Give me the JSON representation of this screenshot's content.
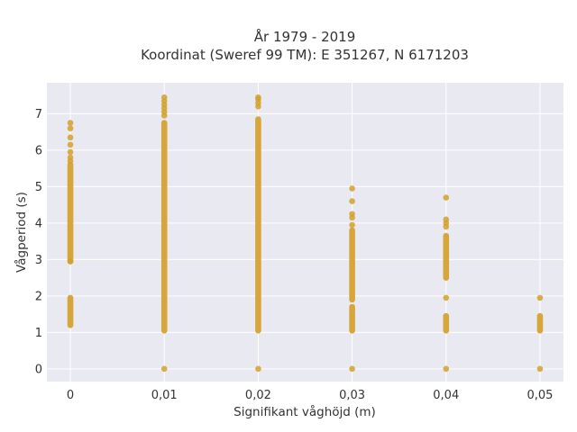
{
  "chart_data": {
    "type": "scatter",
    "title": "År 1979 - 2019",
    "subtitle": "Koordinat (Sweref 99 TM): E 351267, N 6171203",
    "xlabel": "Signifikant våghöjd (m)",
    "ylabel": "Vågperiod (s)",
    "xlim": [
      -0.0025,
      0.0525
    ],
    "ylim": [
      -0.35,
      7.85
    ],
    "x_ticks": [
      0,
      0.01,
      0.02,
      0.03,
      0.04,
      0.05
    ],
    "x_tick_labels": [
      "0",
      "0,01",
      "0,02",
      "0,03",
      "0,04",
      "0,05"
    ],
    "y_ticks": [
      0,
      1,
      2,
      3,
      4,
      5,
      6,
      7
    ],
    "y_tick_labels": [
      "0",
      "1",
      "2",
      "3",
      "4",
      "5",
      "6",
      "7"
    ],
    "grid": true,
    "marker_color": "#D4A02A",
    "background_color": "#E9E9F1",
    "series": [
      {
        "segments": [
          {
            "x": 0,
            "y": [
              1.2,
              1.95
            ]
          },
          {
            "x": 0,
            "y": [
              2.95,
              5.6
            ]
          },
          {
            "x": 0.01,
            "y": [
              1.05,
              6.75
            ]
          },
          {
            "x": 0.02,
            "y": [
              1.05,
              6.85
            ]
          },
          {
            "x": 0.03,
            "y": [
              1.05,
              1.7
            ]
          },
          {
            "x": 0.03,
            "y": [
              1.9,
              3.8
            ]
          },
          {
            "x": 0.04,
            "y": [
              1.05,
              1.45
            ]
          },
          {
            "x": 0.04,
            "y": [
              2.5,
              3.65
            ]
          },
          {
            "x": 0.05,
            "y": [
              1.05,
              1.45
            ]
          }
        ],
        "points": [
          {
            "x": 0,
            "y": 6.75
          },
          {
            "x": 0,
            "y": 6.6
          },
          {
            "x": 0,
            "y": 6.35
          },
          {
            "x": 0,
            "y": 6.15
          },
          {
            "x": 0,
            "y": 5.95
          },
          {
            "x": 0,
            "y": 5.8
          },
          {
            "x": 0,
            "y": 5.7
          },
          {
            "x": 0,
            "y": 2.95
          },
          {
            "x": 0.01,
            "y": 7.45
          },
          {
            "x": 0.01,
            "y": 7.35
          },
          {
            "x": 0.01,
            "y": 7.25
          },
          {
            "x": 0.01,
            "y": 7.15
          },
          {
            "x": 0.01,
            "y": 7.05
          },
          {
            "x": 0.01,
            "y": 6.95
          },
          {
            "x": 0.01,
            "y": 0
          },
          {
            "x": 0.02,
            "y": 7.45
          },
          {
            "x": 0.02,
            "y": 7.4
          },
          {
            "x": 0.02,
            "y": 7.3
          },
          {
            "x": 0.02,
            "y": 7.2
          },
          {
            "x": 0.02,
            "y": 0
          },
          {
            "x": 0.03,
            "y": 4.95
          },
          {
            "x": 0.03,
            "y": 4.6
          },
          {
            "x": 0.03,
            "y": 4.25
          },
          {
            "x": 0.03,
            "y": 4.15
          },
          {
            "x": 0.03,
            "y": 3.95
          },
          {
            "x": 0.03,
            "y": 0
          },
          {
            "x": 0.04,
            "y": 4.7
          },
          {
            "x": 0.04,
            "y": 4.1
          },
          {
            "x": 0.04,
            "y": 4.0
          },
          {
            "x": 0.04,
            "y": 3.9
          },
          {
            "x": 0.04,
            "y": 1.95
          },
          {
            "x": 0.04,
            "y": 0
          },
          {
            "x": 0.05,
            "y": 1.95
          },
          {
            "x": 0.05,
            "y": 0
          }
        ]
      }
    ]
  }
}
